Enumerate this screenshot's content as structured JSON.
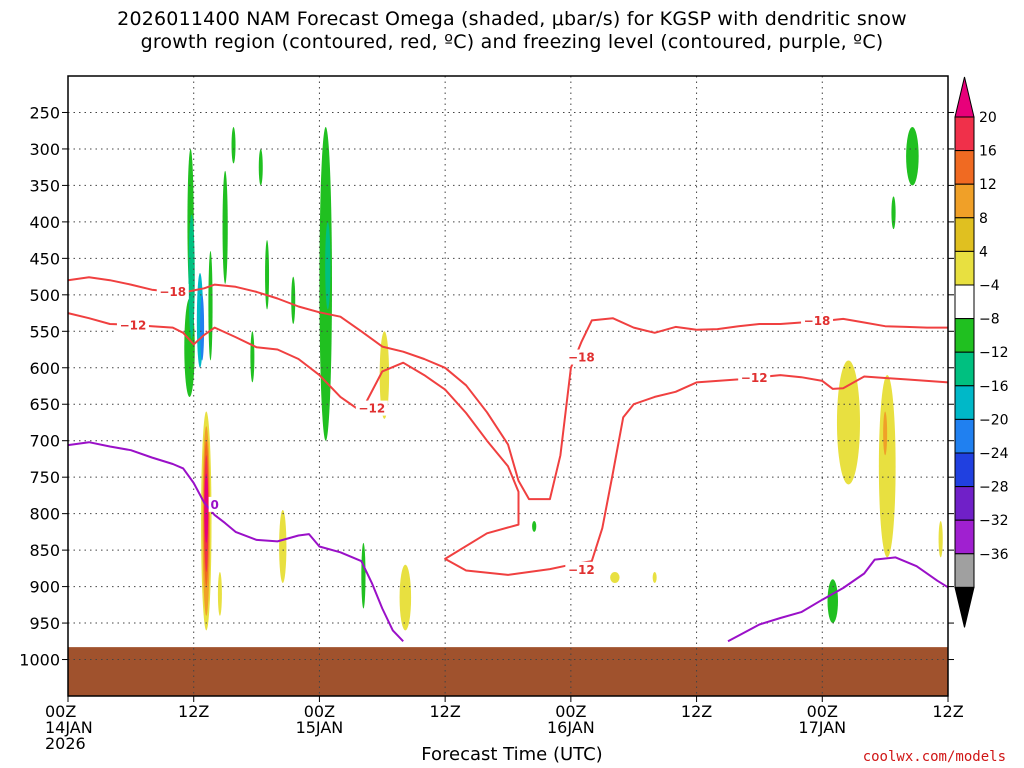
{
  "chart_data": {
    "type": "heatmap",
    "title_line1": "2026011400 NAM Forecast Omega (shaded, μbar/s) for KGSP with dendritic snow",
    "title_line2": "growth region (contoured, red, ºC) and freezing level (contoured, purple, ºC)",
    "xlabel": "Forecast Time (UTC)",
    "credit": "coolwx.com/models",
    "x_hours_range": [
      0,
      84
    ],
    "x_ticks": [
      {
        "h": 0,
        "lines": [
          "00Z",
          "14JAN",
          "2026"
        ]
      },
      {
        "h": 12,
        "lines": [
          "12Z"
        ]
      },
      {
        "h": 24,
        "lines": [
          "00Z",
          "15JAN"
        ]
      },
      {
        "h": 36,
        "lines": [
          "12Z"
        ]
      },
      {
        "h": 48,
        "lines": [
          "00Z",
          "16JAN"
        ]
      },
      {
        "h": 60,
        "lines": [
          "12Z"
        ]
      },
      {
        "h": 72,
        "lines": [
          "00Z",
          "17JAN"
        ]
      },
      {
        "h": 84,
        "lines": [
          "12Z"
        ]
      }
    ],
    "y_pressure_range": [
      1050,
      200
    ],
    "y_ticks": [
      250,
      300,
      350,
      400,
      450,
      500,
      550,
      600,
      650,
      700,
      750,
      800,
      850,
      900,
      950,
      1000
    ],
    "colorbar": {
      "labels": [
        "20",
        "16",
        "12",
        "8",
        "4",
        "−4",
        "−8",
        "−12",
        "−16",
        "−20",
        "−24",
        "−28",
        "−32",
        "−36"
      ],
      "colors": [
        "#f0304a",
        "#f06a22",
        "#f0a028",
        "#e0c020",
        "#e8e040",
        "#ffffff",
        "#20c020",
        "#00c080",
        "#00b8c8",
        "#2080f0",
        "#2040e0",
        "#7020c8",
        "#a020d0",
        "#a0a0a0"
      ],
      "top_color": "#e8007a",
      "bottom_color": "#000000"
    },
    "ground_color": "#a0522d",
    "dgz_contours": {
      "color": "#f04040",
      "lines": [
        {
          "label": "−18",
          "pts": [
            [
              0,
              480
            ],
            [
              2,
              476
            ],
            [
              4,
              480
            ],
            [
              6,
              486
            ],
            [
              8,
              493
            ],
            [
              10,
              496
            ],
            [
              11,
              497
            ],
            [
              12,
              494
            ],
            [
              13,
              491
            ],
            [
              14,
              486
            ],
            [
              16,
              489
            ],
            [
              18,
              496
            ],
            [
              20,
              505
            ],
            [
              22,
              516
            ],
            [
              24,
              524
            ],
            [
              26,
              530
            ],
            [
              28,
              550
            ],
            [
              30,
              571
            ],
            [
              32,
              578
            ],
            [
              34,
              588
            ],
            [
              36,
              600
            ],
            [
              38,
              624
            ],
            [
              40,
              661
            ],
            [
              42,
              705
            ],
            [
              43,
              755
            ],
            [
              44,
              780
            ],
            [
              46,
              780
            ],
            [
              47,
              720
            ],
            [
              48,
              600
            ],
            [
              49,
              565
            ],
            [
              50,
              535
            ],
            [
              52,
              532
            ],
            [
              54,
              545
            ],
            [
              56,
              552
            ],
            [
              58,
              544
            ],
            [
              60,
              548
            ],
            [
              62,
              547
            ],
            [
              64,
              543
            ],
            [
              66,
              540
            ],
            [
              68,
              540
            ],
            [
              70,
              538
            ],
            [
              72,
              536
            ],
            [
              74,
              533
            ],
            [
              76,
              538
            ],
            [
              78,
              543
            ],
            [
              80,
              544
            ],
            [
              82,
              545
            ],
            [
              84,
              545
            ]
          ]
        },
        {
          "label": "−12",
          "pts": [
            [
              0,
              525
            ],
            [
              2,
              532
            ],
            [
              4,
              540
            ],
            [
              6,
              541
            ],
            [
              8,
              543
            ],
            [
              10,
              545
            ],
            [
              11,
              552
            ],
            [
              12,
              568
            ],
            [
              13,
              555
            ],
            [
              14,
              545
            ],
            [
              16,
              558
            ],
            [
              18,
              572
            ],
            [
              20,
              575
            ],
            [
              22,
              588
            ],
            [
              24,
              610
            ],
            [
              26,
              640
            ],
            [
              28,
              660
            ],
            [
              30,
              605
            ],
            [
              32,
              593
            ],
            [
              34,
              610
            ],
            [
              36,
              630
            ],
            [
              38,
              662
            ],
            [
              40,
              700
            ],
            [
              42,
              735
            ],
            [
              43,
              770
            ],
            [
              43,
              815
            ],
            [
              40,
              827
            ],
            [
              36,
              862
            ],
            [
              38,
              878
            ],
            [
              42,
              884
            ],
            [
              46,
              876
            ],
            [
              48,
              870
            ],
            [
              50,
              865
            ],
            [
              51,
              820
            ],
            [
              52,
              745
            ],
            [
              53,
              668
            ],
            [
              54,
              650
            ],
            [
              56,
              640
            ],
            [
              58,
              633
            ],
            [
              60,
              620
            ],
            [
              62,
              618
            ],
            [
              64,
              616
            ],
            [
              66,
              613
            ],
            [
              68,
              610
            ],
            [
              70,
              613
            ],
            [
              72,
              618
            ],
            [
              73,
              629
            ],
            [
              74,
              628
            ],
            [
              76,
              612
            ],
            [
              78,
              614
            ],
            [
              80,
              616
            ],
            [
              82,
              618
            ],
            [
              84,
              620
            ]
          ]
        }
      ],
      "labels": [
        {
          "h": 10,
          "p": 496,
          "text": "−18"
        },
        {
          "h": 6.2,
          "p": 542,
          "text": "−12"
        },
        {
          "h": 29,
          "p": 656,
          "text": "−12"
        },
        {
          "h": 49,
          "p": 586,
          "text": "−18"
        },
        {
          "h": 49,
          "p": 877,
          "text": "−12"
        },
        {
          "h": 65.5,
          "p": 614,
          "text": "−12"
        },
        {
          "h": 71.5,
          "p": 536,
          "text": "−18"
        }
      ]
    },
    "freezing_contour": {
      "color": "#9a10c8",
      "label": "0",
      "label_pos": {
        "h": 14,
        "p": 788
      },
      "segments": [
        [
          [
            0,
            706
          ],
          [
            2,
            702
          ],
          [
            4,
            708
          ],
          [
            6,
            713
          ],
          [
            8,
            723
          ],
          [
            10,
            732
          ],
          [
            11,
            738
          ],
          [
            12,
            758
          ],
          [
            13,
            785
          ],
          [
            14,
            802
          ],
          [
            15,
            813
          ],
          [
            16,
            825
          ],
          [
            18,
            836
          ],
          [
            20,
            838
          ],
          [
            22,
            830
          ],
          [
            23,
            828
          ],
          [
            24,
            845
          ],
          [
            26,
            853
          ],
          [
            28,
            865
          ],
          [
            29,
            895
          ],
          [
            30,
            930
          ],
          [
            31,
            960
          ],
          [
            32,
            975
          ]
        ],
        [
          [
            63,
            975
          ],
          [
            66,
            952
          ],
          [
            68,
            943
          ],
          [
            70,
            935
          ],
          [
            72,
            918
          ],
          [
            74,
            902
          ],
          [
            76,
            882
          ],
          [
            77,
            863
          ],
          [
            79,
            860
          ],
          [
            81,
            872
          ],
          [
            83,
            892
          ],
          [
            84,
            901
          ]
        ]
      ]
    },
    "omega_patches": [
      {
        "color": "#20c020",
        "h": 11.7,
        "p0": 300,
        "p1": 505,
        "w": 0.6
      },
      {
        "color": "#20c020",
        "h": 11.6,
        "p0": 505,
        "p1": 640,
        "w": 1.0
      },
      {
        "color": "#00c080",
        "h": 11.8,
        "p0": 390,
        "p1": 560,
        "w": 0.6
      },
      {
        "color": "#00b8c8",
        "h": 12.6,
        "p0": 470,
        "p1": 600,
        "w": 0.6
      },
      {
        "color": "#2080f0",
        "h": 12.8,
        "p0": 500,
        "p1": 590,
        "w": 0.3
      },
      {
        "color": "#20c020",
        "h": 13.6,
        "p0": 440,
        "p1": 590,
        "w": 0.4
      },
      {
        "color": "#20c020",
        "h": 15.8,
        "p0": 270,
        "p1": 320,
        "w": 0.3
      },
      {
        "color": "#20c020",
        "h": 15.0,
        "p0": 330,
        "p1": 485,
        "w": 0.5
      },
      {
        "color": "#20c020",
        "h": 18.4,
        "p0": 300,
        "p1": 350,
        "w": 0.2
      },
      {
        "color": "#20c020",
        "h": 19.0,
        "p0": 425,
        "p1": 520,
        "w": 0.2
      },
      {
        "color": "#20c020",
        "h": 21.5,
        "p0": 475,
        "p1": 540,
        "w": 0.2
      },
      {
        "color": "#20c020",
        "h": 24.6,
        "p0": 270,
        "p1": 700,
        "w": 1.2
      },
      {
        "color": "#00c080",
        "h": 24.8,
        "p0": 400,
        "p1": 520,
        "w": 0.5
      },
      {
        "color": "#20c020",
        "h": 17.6,
        "p0": 550,
        "p1": 620,
        "w": 0.3
      },
      {
        "color": "#e8e040",
        "h": 13.2,
        "p0": 660,
        "p1": 960,
        "w": 1.0
      },
      {
        "color": "#f0a028",
        "h": 13.2,
        "p0": 680,
        "p1": 940,
        "w": 0.7
      },
      {
        "color": "#f06a22",
        "h": 13.2,
        "p0": 700,
        "p1": 900,
        "w": 0.5
      },
      {
        "color": "#f0304a",
        "h": 13.2,
        "p0": 720,
        "p1": 880,
        "w": 0.3
      },
      {
        "color": "#e8007a",
        "h": 13.2,
        "p0": 745,
        "p1": 840,
        "w": 0.15
      },
      {
        "color": "#e8e040",
        "h": 14.5,
        "p0": 880,
        "p1": 940,
        "w": 0.3
      },
      {
        "color": "#e8e040",
        "h": 20.5,
        "p0": 795,
        "p1": 895,
        "w": 0.7
      },
      {
        "color": "#e8e040",
        "h": 30.2,
        "p0": 550,
        "p1": 670,
        "w": 0.9
      },
      {
        "color": "#e8e040",
        "h": 32.2,
        "p0": 870,
        "p1": 960,
        "w": 1.1
      },
      {
        "color": "#20c020",
        "h": 28.2,
        "p0": 840,
        "p1": 930,
        "w": 0.4
      },
      {
        "color": "#20c020",
        "h": 44.5,
        "p0": 810,
        "p1": 825,
        "w": 0.4
      },
      {
        "color": "#e8e040",
        "h": 52.2,
        "p0": 880,
        "p1": 895,
        "w": 0.9
      },
      {
        "color": "#e8e040",
        "h": 56.0,
        "p0": 880,
        "p1": 895,
        "w": 0.3
      },
      {
        "color": "#e8e040",
        "h": 74.5,
        "p0": 590,
        "p1": 760,
        "w": 2.2
      },
      {
        "color": "#e8e040",
        "h": 78.2,
        "p0": 610,
        "p1": 860,
        "w": 1.6
      },
      {
        "color": "#f0a028",
        "h": 78.0,
        "p0": 660,
        "p1": 720,
        "w": 0.2
      },
      {
        "color": "#e8e040",
        "h": 83.3,
        "p0": 810,
        "p1": 860,
        "w": 0.4
      },
      {
        "color": "#20c020",
        "h": 73.0,
        "p0": 890,
        "p1": 950,
        "w": 1.0
      },
      {
        "color": "#20c020",
        "h": 80.6,
        "p0": 270,
        "p1": 350,
        "w": 1.2
      },
      {
        "color": "#20c020",
        "h": 78.8,
        "p0": 365,
        "p1": 410,
        "w": 0.4
      }
    ]
  }
}
